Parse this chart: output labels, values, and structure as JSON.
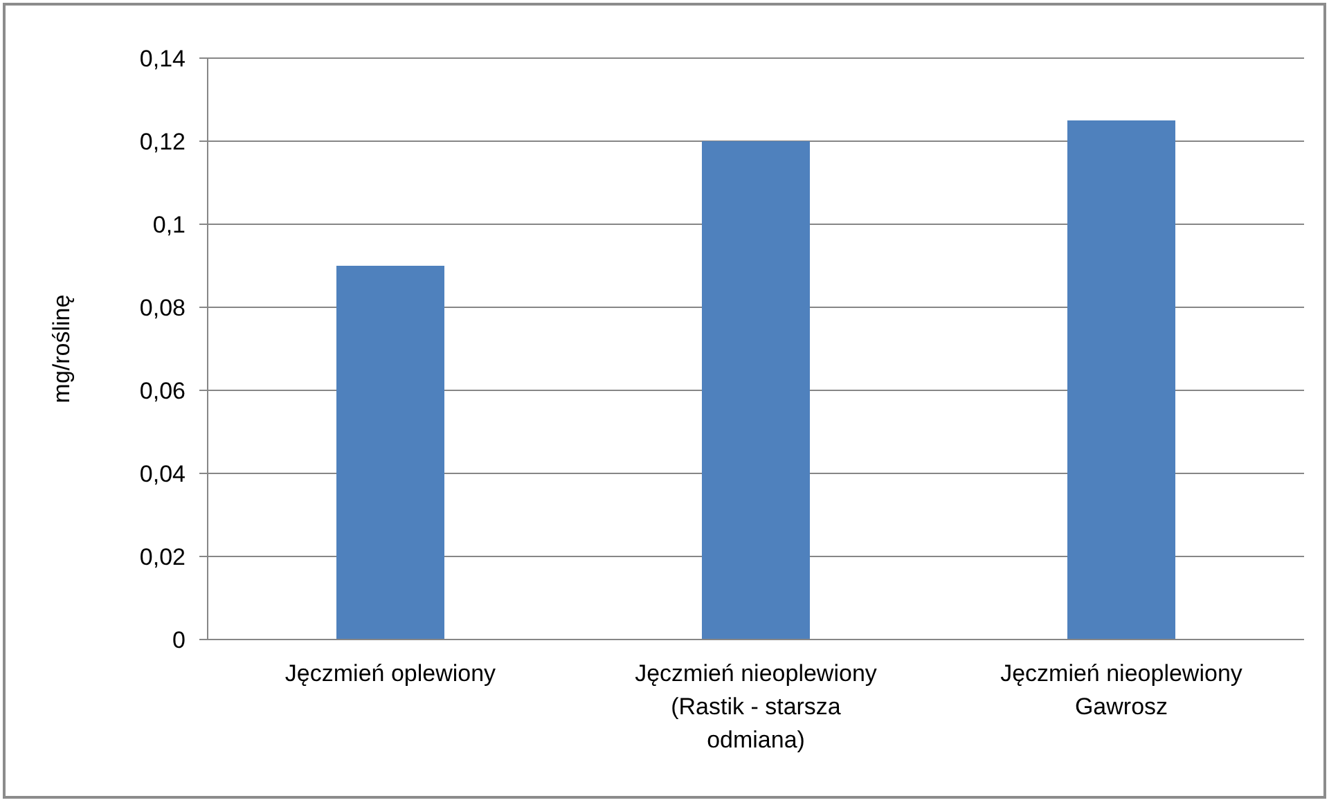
{
  "chart_data": {
    "type": "bar",
    "ylabel": "mg/roślinę",
    "categories": [
      "Jęczmień oplewiony",
      "Jęczmień nieoplewiony (Rastik - starsza odmiana)",
      "Jęczmień nieoplewiony Gawrosz"
    ],
    "values": [
      0.09,
      0.12,
      0.125
    ],
    "color": "#4f81bd",
    "ylim": [
      0,
      0.14
    ],
    "yticks": [
      {
        "value": 0,
        "label": "0"
      },
      {
        "value": 0.02,
        "label": "0,02"
      },
      {
        "value": 0.04,
        "label": "0,04"
      },
      {
        "value": 0.06,
        "label": "0,06"
      },
      {
        "value": 0.08,
        "label": "0,08"
      },
      {
        "value": 0.1,
        "label": "0,1"
      },
      {
        "value": 0.12,
        "label": "0,12"
      },
      {
        "value": 0.14,
        "label": "0,14"
      }
    ],
    "grid": "y",
    "legend": false
  }
}
